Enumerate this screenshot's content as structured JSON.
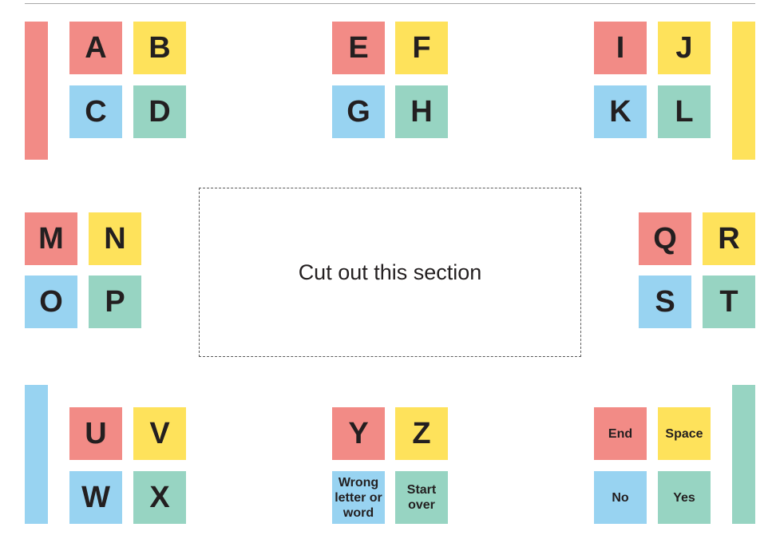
{
  "colors": {
    "red": "#f28b86",
    "yellow": "#fee25b",
    "blue": "#98d3f1",
    "green": "#97d4c2"
  },
  "cut_section_label": "Cut out this section",
  "tiles": {
    "a": "A",
    "b": "B",
    "c": "C",
    "d": "D",
    "e": "E",
    "f": "F",
    "g": "G",
    "h": "H",
    "i": "I",
    "j": "J",
    "k": "K",
    "l": "L",
    "m": "M",
    "n": "N",
    "o": "O",
    "p": "P",
    "q": "Q",
    "r": "R",
    "s": "S",
    "t": "T",
    "u": "U",
    "v": "V",
    "w": "W",
    "x": "X",
    "y": "Y",
    "z": "Z",
    "wrong": "Wrong letter or word",
    "start_over": "Start over",
    "end": "End",
    "space": "Space",
    "no": "No",
    "yes": "Yes"
  }
}
